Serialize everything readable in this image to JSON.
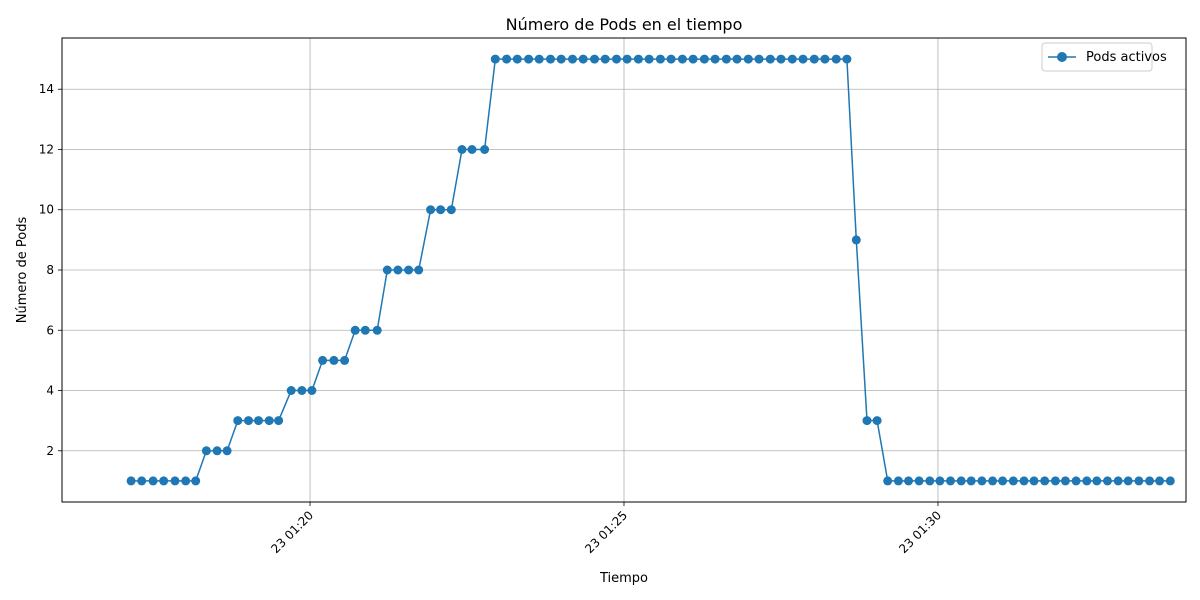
{
  "chart_data": {
    "type": "line",
    "title": "Número de Pods en el tiempo",
    "xlabel": "Tiempo",
    "ylabel": "Número de Pods",
    "x_ticks": [
      {
        "minute": 20,
        "label": "23 01:20"
      },
      {
        "minute": 25,
        "label": "23 01:25"
      },
      {
        "minute": 30,
        "label": "23 01:30"
      }
    ],
    "y_ticks": [
      2,
      4,
      6,
      8,
      10,
      12,
      14
    ],
    "xlim": [
      16.05,
      33.95
    ],
    "ylim": [
      0.3,
      15.7
    ],
    "grid": true,
    "legend": "top-right",
    "color": "#1f77b4",
    "series": [
      {
        "name": "Pods activos",
        "x": [
          17.15,
          17.32,
          17.5,
          17.67,
          17.85,
          18.02,
          18.18,
          18.35,
          18.52,
          18.68,
          18.85,
          19.02,
          19.18,
          19.35,
          19.5,
          19.7,
          19.87,
          20.03,
          20.2,
          20.38,
          20.55,
          20.72,
          20.88,
          21.07,
          21.23,
          21.4,
          21.57,
          21.73,
          21.92,
          22.08,
          22.25,
          22.42,
          22.58,
          22.78,
          22.95,
          23.13,
          23.3,
          23.48,
          23.65,
          23.83,
          24.0,
          24.18,
          24.35,
          24.53,
          24.7,
          24.88,
          25.05,
          25.23,
          25.4,
          25.58,
          25.75,
          25.93,
          26.1,
          26.28,
          26.45,
          26.63,
          26.8,
          26.98,
          27.15,
          27.33,
          27.5,
          27.68,
          27.85,
          28.03,
          28.2,
          28.38,
          28.55,
          28.7,
          28.87,
          29.03,
          29.2,
          29.37,
          29.53,
          29.7,
          29.87,
          30.03,
          30.2,
          30.37,
          30.53,
          30.7,
          30.87,
          31.03,
          31.2,
          31.37,
          31.53,
          31.7,
          31.87,
          32.03,
          32.2,
          32.37,
          32.53,
          32.7,
          32.87,
          33.03,
          33.2,
          33.37,
          33.53,
          33.7
        ],
        "values": [
          1,
          1,
          1,
          1,
          1,
          1,
          1,
          2,
          2,
          2,
          3,
          3,
          3,
          3,
          3,
          4,
          4,
          4,
          5,
          5,
          5,
          6,
          6,
          6,
          8,
          8,
          8,
          8,
          10,
          10,
          10,
          12,
          12,
          12,
          15,
          15,
          15,
          15,
          15,
          15,
          15,
          15,
          15,
          15,
          15,
          15,
          15,
          15,
          15,
          15,
          15,
          15,
          15,
          15,
          15,
          15,
          15,
          15,
          15,
          15,
          15,
          15,
          15,
          15,
          15,
          15,
          15,
          9,
          3,
          3,
          1,
          1,
          1,
          1,
          1,
          1,
          1,
          1,
          1,
          1,
          1,
          1,
          1,
          1,
          1,
          1,
          1,
          1,
          1,
          1,
          1,
          1,
          1,
          1,
          1,
          1,
          1,
          1
        ]
      }
    ]
  }
}
